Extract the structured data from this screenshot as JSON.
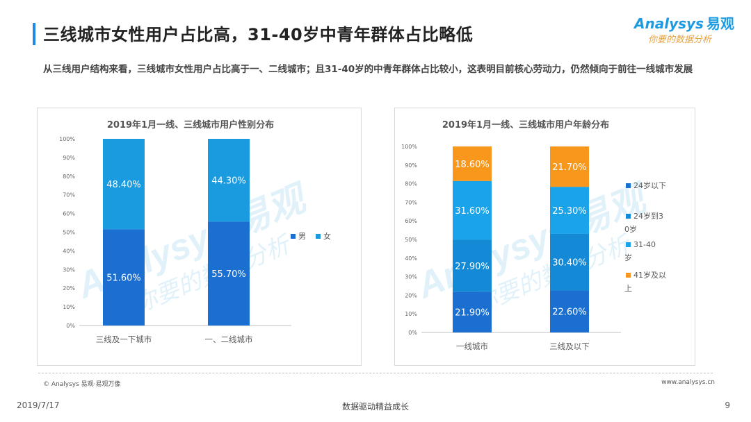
{
  "header": {
    "title": "三线城市女性用户占比高，31-40岁中青年群体占比略低",
    "subtitle": "从三线用户结构来看，三线城市女性用户占比高于一、二线城市；且31-40岁的中青年群体占比较小，这表明目前核心劳动力，仍然倾向于前往一线城市发展",
    "accent_color": "#1E88E5"
  },
  "logo": {
    "brand": "Analysys",
    "brand_cn": "易观",
    "tagline": "你要的数据分析",
    "tagline_color": "#E6A23C",
    "brand_color": "#1E9BE0"
  },
  "watermark": {
    "text": "Analysys 易观",
    "tagline": "你要的数据分析"
  },
  "chart_data": [
    {
      "type": "bar",
      "stacked": true,
      "title": "2019年1月一线、三线城市用户性别分布",
      "categories": [
        "三线及一下城市",
        "一、二线城市"
      ],
      "series": [
        {
          "name": "男",
          "values": [
            51.6,
            55.7
          ],
          "labels": [
            "51.60%",
            "55.70%"
          ],
          "color": "#1B6FD1"
        },
        {
          "name": "女",
          "values": [
            48.4,
            44.3
          ],
          "labels": [
            "48.40%",
            "44.30%"
          ],
          "color": "#1A9BE0"
        }
      ],
      "ylim": [
        0,
        100
      ],
      "yticks": [
        "0%",
        "10%",
        "20%",
        "30%",
        "40%",
        "50%",
        "60%",
        "70%",
        "80%",
        "90%",
        "100%"
      ],
      "legend": "right-middle"
    },
    {
      "type": "bar",
      "stacked": true,
      "title": "2019年1月一线、三线城市用户年龄分布",
      "categories": [
        "一线城市",
        "三线及以下"
      ],
      "series": [
        {
          "name": "24岁以下",
          "values": [
            21.9,
            22.6
          ],
          "labels": [
            "21.90%",
            "22.60%"
          ],
          "color": "#1B6FD1"
        },
        {
          "name": "24岁到30岁",
          "values": [
            27.9,
            30.4
          ],
          "labels": [
            "27.90%",
            "30.40%"
          ],
          "color": "#1489D6"
        },
        {
          "name": "31-40岁",
          "values": [
            31.6,
            25.3
          ],
          "labels": [
            "31.60%",
            "25.30%"
          ],
          "color": "#1AA3E8"
        },
        {
          "name": "41岁及以上",
          "values": [
            18.6,
            21.7
          ],
          "labels": [
            "18.60%",
            "21.70%"
          ],
          "color": "#F7981D"
        }
      ],
      "ylim": [
        0,
        100
      ],
      "yticks": [
        "0%",
        "10%",
        "20%",
        "30%",
        "40%",
        "50%",
        "60%",
        "70%",
        "80%",
        "90%",
        "100%"
      ],
      "legend": "right"
    }
  ],
  "footer": {
    "copyright": "© Analysys 易观·易观万像",
    "site": "www.analysys.cn",
    "date": "2019/7/17",
    "slogan": "数据驱动精益成长",
    "page": "9"
  }
}
